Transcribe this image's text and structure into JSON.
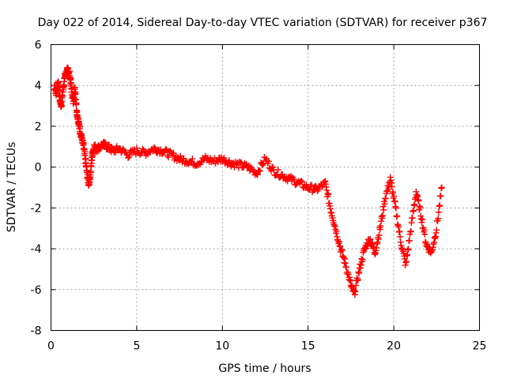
{
  "chart_data": {
    "type": "scatter",
    "title": "Day 022 of 2014, Sidereal Day-to-day VTEC variation (SDTVAR) for receiver p367",
    "xlabel": "GPS time / hours",
    "ylabel": "SDTVAR / TECUs",
    "xlim": [
      0,
      25
    ],
    "ylim": [
      -8,
      6
    ],
    "xticks": [
      0,
      5,
      10,
      15,
      20,
      25
    ],
    "xtick_labels": [
      "0",
      "5",
      "10",
      "15",
      "20",
      "25"
    ],
    "yticks": [
      -8,
      -6,
      -4,
      -2,
      0,
      2,
      4,
      6
    ],
    "ytick_labels": [
      "-8",
      "-6",
      "-4",
      "-2",
      "0",
      "2",
      "4",
      "6"
    ],
    "grid": true,
    "marker": "+",
    "series": [
      {
        "name": "SDTVAR",
        "color": "#ff0000",
        "x": [
          0.2,
          0.3,
          0.4,
          0.5,
          0.6,
          0.7,
          0.8,
          0.9,
          1.0,
          1.1,
          1.2,
          1.3,
          1.4,
          1.5,
          1.6,
          1.7,
          1.8,
          1.9,
          2.0,
          2.1,
          2.2,
          2.3,
          2.4,
          2.5,
          2.7,
          3.0,
          3.3,
          3.6,
          4.0,
          4.5,
          5.0,
          5.5,
          6.0,
          6.5,
          7.0,
          7.5,
          8.0,
          8.5,
          9.0,
          9.5,
          10.0,
          10.5,
          11.0,
          11.5,
          12.0,
          12.5,
          13.0,
          13.5,
          14.0,
          14.5,
          15.0,
          15.5,
          16.0,
          16.3,
          16.6,
          16.9,
          17.2,
          17.5,
          17.7,
          18.0,
          18.3,
          18.6,
          18.9,
          19.2,
          19.5,
          19.8,
          20.1,
          20.4,
          20.7,
          21.0,
          21.3,
          21.6,
          21.9,
          22.2,
          22.5,
          22.8
        ],
        "y": [
          4.0,
          3.6,
          4.2,
          3.4,
          3.0,
          3.8,
          4.4,
          4.6,
          4.8,
          4.5,
          3.8,
          3.2,
          3.9,
          2.8,
          2.2,
          1.8,
          1.4,
          1.0,
          0.4,
          -0.3,
          -0.8,
          -0.4,
          0.6,
          1.0,
          0.9,
          1.1,
          1.0,
          0.8,
          0.9,
          0.6,
          0.8,
          0.7,
          0.9,
          0.8,
          0.6,
          0.4,
          0.3,
          0.2,
          0.4,
          0.3,
          0.4,
          0.2,
          0.1,
          0.0,
          -0.3,
          0.4,
          -0.2,
          -0.4,
          -0.6,
          -0.8,
          -1.0,
          -1.1,
          -0.8,
          -2.0,
          -3.0,
          -4.0,
          -4.8,
          -5.8,
          -6.2,
          -5.0,
          -4.0,
          -3.5,
          -4.2,
          -3.0,
          -1.5,
          -0.6,
          -2.0,
          -3.6,
          -4.8,
          -3.0,
          -1.2,
          -2.4,
          -3.8,
          -4.2,
          -3.0,
          -1.0
        ]
      }
    ]
  }
}
